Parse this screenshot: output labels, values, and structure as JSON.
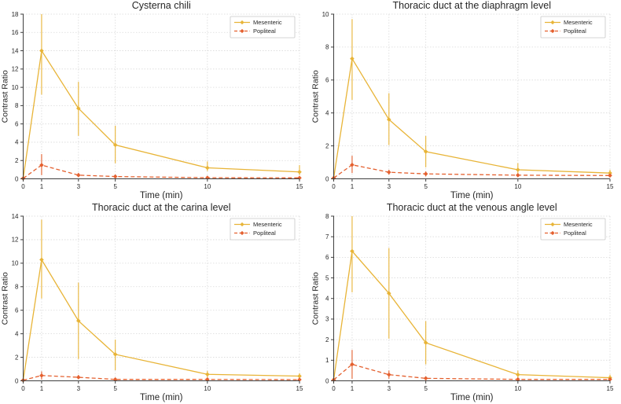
{
  "figure": {
    "description": "Four-panel contrast ratio time curves",
    "series_colors": {
      "mesenteric": "#E8B437",
      "popliteal": "#E4602F"
    },
    "axis_color": "#3f3f3f",
    "grid_color": "#d9d9d9",
    "legend": {
      "entries": [
        "Mesenteric",
        "Popliteal"
      ],
      "position": "top-right"
    }
  },
  "chart_data": [
    {
      "type": "line",
      "title": "Cysterna chili",
      "xlabel": "Time (min)",
      "ylabel": "Contrast Ratio",
      "x": [
        0,
        1,
        3,
        5,
        10,
        15
      ],
      "xticks": [
        0,
        1,
        3,
        5,
        10,
        15
      ],
      "xlim": [
        0,
        15
      ],
      "ylim": [
        0,
        18
      ],
      "yticks": [
        0,
        2,
        4,
        6,
        8,
        10,
        12,
        14,
        16,
        18
      ],
      "grid": true,
      "legend_position": "top-right",
      "series": [
        {
          "name": "Mesenteric",
          "color": "#E8B437",
          "style": "solid",
          "marker": "diamond",
          "values": [
            0.05,
            14.0,
            7.7,
            3.7,
            1.2,
            0.75
          ],
          "err_lo": [
            0.05,
            9.2,
            4.7,
            1.7,
            0.85,
            0.4
          ],
          "err_hi": [
            0.05,
            18.0,
            10.6,
            5.8,
            1.9,
            1.5
          ]
        },
        {
          "name": "Popliteal",
          "color": "#E4602F",
          "style": "dashed",
          "marker": "diamond",
          "values": [
            0.05,
            1.5,
            0.4,
            0.25,
            0.12,
            0.1
          ],
          "err_lo": [
            0.05,
            0.4,
            0.2,
            0.1,
            0.08,
            0.06
          ],
          "err_hi": [
            0.05,
            2.7,
            0.65,
            0.45,
            0.2,
            0.16
          ]
        }
      ]
    },
    {
      "type": "line",
      "title": "Thoracic duct at the diaphragm level",
      "xlabel": "Time (min)",
      "ylabel": "Contrast Ratio",
      "x": [
        0,
        1,
        3,
        5,
        10,
        15
      ],
      "xticks": [
        0,
        1,
        3,
        5,
        10,
        15
      ],
      "xlim": [
        0,
        15
      ],
      "ylim": [
        0,
        10
      ],
      "yticks": [
        0,
        2,
        4,
        6,
        8,
        10
      ],
      "grid": true,
      "legend_position": "top-right",
      "series": [
        {
          "name": "Mesenteric",
          "color": "#E8B437",
          "style": "solid",
          "marker": "diamond",
          "values": [
            0.05,
            7.3,
            3.6,
            1.65,
            0.55,
            0.35
          ],
          "err_lo": [
            0.05,
            4.8,
            2.05,
            0.7,
            0.3,
            0.2
          ],
          "err_hi": [
            0.05,
            9.7,
            5.2,
            2.6,
            0.95,
            0.55
          ]
        },
        {
          "name": "Popliteal",
          "color": "#E4602F",
          "style": "dashed",
          "marker": "diamond",
          "values": [
            0.05,
            0.85,
            0.4,
            0.3,
            0.22,
            0.2
          ],
          "err_lo": [
            0.05,
            0.35,
            0.25,
            0.15,
            0.12,
            0.1
          ],
          "err_hi": [
            0.05,
            1.4,
            0.55,
            0.45,
            0.32,
            0.3
          ]
        }
      ]
    },
    {
      "type": "line",
      "title": "Thoracic duct at the carina level",
      "xlabel": "Time (min)",
      "ylabel": "Contrast Ratio",
      "x": [
        0,
        1,
        3,
        5,
        10,
        15
      ],
      "xticks": [
        0,
        1,
        3,
        5,
        10,
        15
      ],
      "xlim": [
        0,
        15
      ],
      "ylim": [
        0,
        14
      ],
      "yticks": [
        0,
        2,
        4,
        6,
        8,
        10,
        12,
        14
      ],
      "grid": true,
      "legend_position": "top-right",
      "series": [
        {
          "name": "Mesenteric",
          "color": "#E8B437",
          "style": "solid",
          "marker": "diamond",
          "values": [
            0.05,
            10.3,
            5.1,
            2.25,
            0.55,
            0.4
          ],
          "err_lo": [
            0.05,
            7.0,
            1.85,
            0.9,
            0.3,
            0.15
          ],
          "err_hi": [
            0.05,
            13.7,
            8.35,
            3.5,
            0.85,
            0.65
          ]
        },
        {
          "name": "Popliteal",
          "color": "#E4602F",
          "style": "dashed",
          "marker": "diamond",
          "values": [
            0.05,
            0.45,
            0.3,
            0.12,
            0.12,
            0.1
          ],
          "err_lo": [
            0.05,
            0.1,
            0.15,
            0.05,
            0.05,
            0.05
          ],
          "err_hi": [
            0.05,
            0.8,
            0.5,
            0.2,
            0.2,
            0.18
          ]
        }
      ]
    },
    {
      "type": "line",
      "title": "Thoracic duct at the venous angle level",
      "xlabel": "Time (min)",
      "ylabel": "Contrast Ratio",
      "x": [
        0,
        1,
        3,
        5,
        10,
        15
      ],
      "xticks": [
        0,
        1,
        3,
        5,
        10,
        15
      ],
      "xlim": [
        0,
        15
      ],
      "ylim": [
        0,
        8
      ],
      "yticks": [
        0,
        1,
        2,
        3,
        4,
        5,
        6,
        7,
        8
      ],
      "grid": true,
      "legend_position": "top-right",
      "series": [
        {
          "name": "Mesenteric",
          "color": "#E8B437",
          "style": "solid",
          "marker": "diamond",
          "values": [
            0.05,
            6.3,
            4.25,
            1.85,
            0.3,
            0.15
          ],
          "err_lo": [
            0.05,
            4.3,
            2.05,
            0.8,
            0.15,
            0.05
          ],
          "err_hi": [
            0.05,
            8.0,
            6.45,
            2.9,
            0.5,
            0.3
          ]
        },
        {
          "name": "Popliteal",
          "color": "#E4602F",
          "style": "dashed",
          "marker": "diamond",
          "values": [
            0.05,
            0.8,
            0.3,
            0.12,
            0.07,
            0.07
          ],
          "err_lo": [
            0.05,
            0.1,
            0.1,
            0.05,
            0.03,
            0.03
          ],
          "err_hi": [
            0.05,
            1.5,
            0.5,
            0.2,
            0.12,
            0.12
          ]
        }
      ]
    }
  ]
}
